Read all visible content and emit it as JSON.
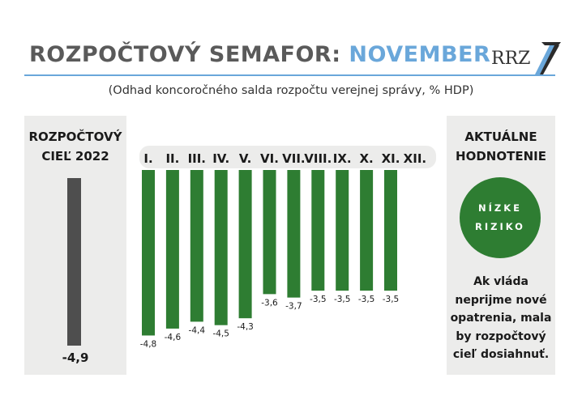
{
  "header": {
    "title_main": "ROZPOČTOVÝ SEMAFOR:",
    "title_accent": "NOVEMBER",
    "logo_text": "RRZ"
  },
  "subtitle": "(Odhad koncoročného salda rozpočtu verejnej správy,  % HDP)",
  "left_panel": {
    "heading_line1": "ROZPOČTOVÝ",
    "heading_line2": "CIEĽ 2022",
    "target_value_label": "-4,9"
  },
  "right_panel": {
    "heading_line1": "AKTUÁLNE",
    "heading_line2": "HODNOTENIE",
    "risk_line1": "NÍZKE",
    "risk_line2": "RIZIKO",
    "note_lines": [
      "Ak vláda",
      "neprijme nové",
      "opatrenia, mala",
      "by rozpočtový",
      "cieľ dosiahnuť."
    ]
  },
  "colors": {
    "title_gray": "#5a5a5a",
    "accent_blue": "#6aa7da",
    "bar_green": "#2e7d32",
    "target_bar": "#4e4e4e",
    "panel_bg": "#ececeb"
  },
  "chart_data": {
    "type": "bar",
    "categories": [
      "I.",
      "II.",
      "III.",
      "IV.",
      "V.",
      "VI.",
      "VII.",
      "VIII.",
      "IX.",
      "X.",
      "XI.",
      "XII."
    ],
    "values": [
      -4.8,
      -4.6,
      -4.4,
      -4.5,
      -4.3,
      -3.6,
      -3.7,
      -3.5,
      -3.5,
      -3.5,
      -3.5,
      null
    ],
    "value_labels": [
      "-4,8",
      "-4,6",
      "-4,4",
      "-4,5",
      "-4,3",
      "-3,6",
      "-3,7",
      "-3,5",
      "-3,5",
      "-3,5",
      "-3,5",
      ""
    ],
    "target": -4.9,
    "title": "",
    "xlabel": "",
    "ylabel": "",
    "ylim": [
      -5,
      0
    ],
    "grid": false,
    "legend": "none"
  }
}
